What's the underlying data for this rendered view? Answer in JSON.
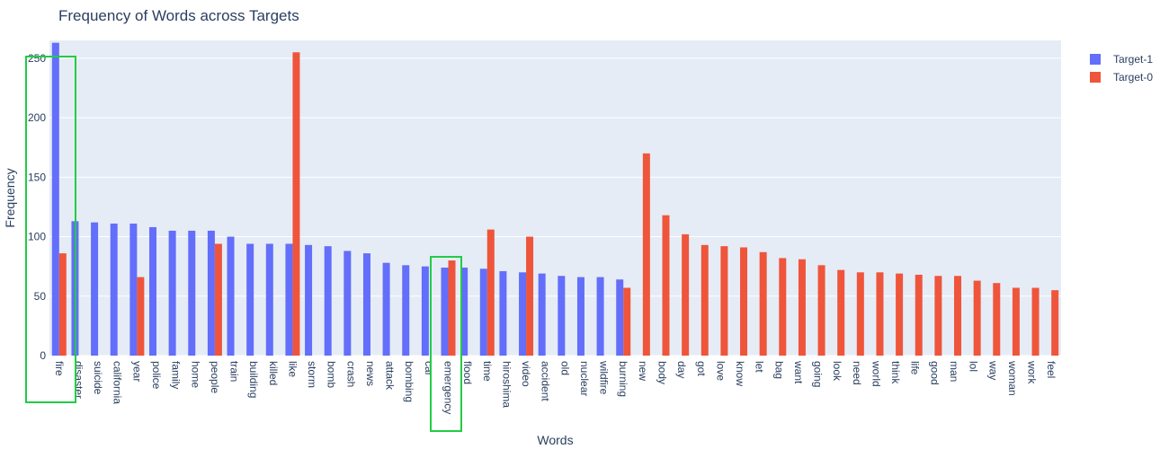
{
  "chart_data": {
    "type": "bar",
    "title": "Frequency of Words across Targets",
    "xlabel": "Words",
    "ylabel": "Frequency",
    "ylim": [
      0,
      265
    ],
    "yticks": [
      0,
      50,
      100,
      150,
      200,
      250
    ],
    "grid": true,
    "legend_position": "top-right",
    "categories": [
      "fire",
      "disaster",
      "suicide",
      "california",
      "year",
      "police",
      "family",
      "home",
      "people",
      "train",
      "building",
      "killed",
      "like",
      "storm",
      "bomb",
      "crash",
      "news",
      "attack",
      "bombing",
      "car",
      "emergency",
      "flood",
      "time",
      "hiroshima",
      "video",
      "accident",
      "old",
      "nuclear",
      "wildfire",
      "burning",
      "new",
      "body",
      "day",
      "got",
      "love",
      "know",
      "let",
      "bag",
      "want",
      "going",
      "look",
      "need",
      "world",
      "think",
      "life",
      "good",
      "man",
      "lol",
      "way",
      "woman",
      "work",
      "feel"
    ],
    "series": [
      {
        "name": "Target-1",
        "color": "#636efa",
        "values": [
          263,
          113,
          112,
          111,
          111,
          108,
          105,
          105,
          105,
          100,
          94,
          94,
          94,
          93,
          92,
          88,
          86,
          78,
          76,
          75,
          74,
          74,
          73,
          71,
          70,
          69,
          67,
          66,
          66,
          64,
          null,
          null,
          null,
          null,
          null,
          null,
          null,
          null,
          null,
          null,
          null,
          null,
          null,
          null,
          null,
          null,
          null,
          null,
          null,
          null,
          null,
          null
        ]
      },
      {
        "name": "Target-0",
        "color": "#ef553b",
        "values": [
          86,
          null,
          null,
          null,
          66,
          null,
          null,
          null,
          94,
          null,
          null,
          null,
          255,
          null,
          null,
          null,
          null,
          null,
          null,
          null,
          80,
          null,
          106,
          null,
          100,
          null,
          null,
          null,
          null,
          57,
          170,
          118,
          102,
          93,
          92,
          91,
          87,
          82,
          81,
          76,
          72,
          70,
          70,
          69,
          68,
          67,
          67,
          63,
          61,
          57,
          57,
          55
        ]
      }
    ]
  }
}
